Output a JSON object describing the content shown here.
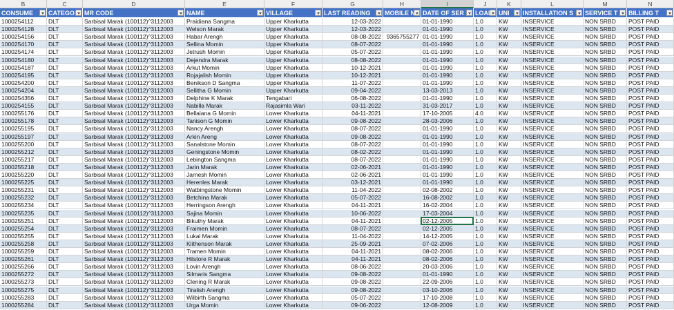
{
  "columns": [
    "B",
    "C",
    "D",
    "E",
    "F",
    "G",
    "H",
    "I",
    "J",
    "K",
    "L",
    "M",
    "N"
  ],
  "header": [
    "CONSUME",
    "CATEGO",
    "MR CODE",
    "NAME",
    "VILLAGE",
    "LAST READING",
    "MOBILE N",
    "DATE OF SER",
    "LOAI",
    "UNI",
    "INSTALLATION S",
    "SERVICE T",
    "BILLING T"
  ],
  "rows": [
    [
      "1000254112",
      "DLT",
      "Sarbisal Marak (100112)^3112003",
      "Praidiana Sangma",
      "Upper Kharkutta",
      "12-03-2022",
      null,
      "01-01-1990",
      "1.0",
      "KW",
      "INSERVICE",
      "NON SRBD",
      "POST PAID"
    ],
    [
      "1000254128",
      "DLT",
      "Sarbisal Marak (100112)^3112003",
      "Welson Marak",
      "Upper Kharkutta",
      "12-03-2022",
      null,
      "01-01-1990",
      "1.0",
      "KW",
      "INSERVICE",
      "NON SRBD",
      "POST PAID"
    ],
    [
      "1000254156",
      "DLT",
      "Sarbisal Marak (100112)^3112003",
      "Habar Arengh",
      "Upper Kharkutta",
      "08-08-2022",
      "9365755277",
      "01-01-1990",
      "1.0",
      "KW",
      "INSERVICE",
      "NON SRBD",
      "POST PAID"
    ],
    [
      "1000254170",
      "DLT",
      "Sarbisal Marak (100112)^3112003",
      "Sellina Momin",
      "Upper Kharkutta",
      "08-07-2022",
      null,
      "01-01-1990",
      "1.0",
      "KW",
      "INSERVICE",
      "NON SRBD",
      "POST PAID"
    ],
    [
      "1000254174",
      "DLT",
      "Sarbisal Marak (100112)^3112003",
      "Jetrush Momin",
      "Upper Kharkutta",
      "05-07-2022",
      null,
      "01-01-1990",
      "1.0",
      "KW",
      "INSERVICE",
      "NON SRBD",
      "POST PAID"
    ],
    [
      "1000254180",
      "DLT",
      "Sarbisal Marak (100112)^3112003",
      "Dejendra Marak",
      "Upper Kharkutta",
      "08-08-2022",
      null,
      "01-01-1990",
      "1.0",
      "KW",
      "INSERVICE",
      "NON SRBD",
      "POST PAID"
    ],
    [
      "1000254187",
      "DLT",
      "Sarbisal Marak (100112)^3112003",
      "Arkut Momin",
      "Upper Kharkutta",
      "10-12-2021",
      null,
      "01-01-1990",
      "1.0",
      "KW",
      "INSERVICE",
      "NON SRBD",
      "POST PAID"
    ],
    [
      "1000254195",
      "DLT",
      "Sarbisal Marak (100112)^3112003",
      "Rojajalish Momin",
      "Upper Kharkutta",
      "10-12-2021",
      null,
      "01-01-1990",
      "1.0",
      "KW",
      "INSERVICE",
      "NON SRBD",
      "POST PAID"
    ],
    [
      "1000254200",
      "DLT",
      "Sarbisal Marak (100112)^3112003",
      "Benikson D Sangma",
      "Upper Kharkutta",
      "11-07-2022",
      null,
      "01-01-1990",
      "1.0",
      "KW",
      "INSERVICE",
      "NON SRBD",
      "POST PAID"
    ],
    [
      "1000254204",
      "DLT",
      "Sarbisal Marak (100112)^3112003",
      "Sellitha G Momin",
      "Upper Kharkutta",
      "09-04-2022",
      null,
      "13-03-2013",
      "1.0",
      "KW",
      "INSERVICE",
      "NON SRBD",
      "POST PAID"
    ],
    [
      "1000254356",
      "DLT",
      "Sarbisal Marak (100112)^3112003",
      "Delphine K Marak",
      "Tengabari",
      "06-08-2022",
      null,
      "01-01-1990",
      "1.0",
      "KW",
      "INSERVICE",
      "NON SRBD",
      "POST PAID"
    ],
    [
      "1000254155",
      "DLT",
      "Sarbisal Marak (100112)^3112003",
      "Nabilla Marak",
      "Rajasimla Wari",
      "03-11-2022",
      null,
      "31-03-2017",
      "1.0",
      "KW",
      "INSERVICE",
      "NON SRBD",
      "POST PAID"
    ],
    [
      "1000255176",
      "DLT",
      "Sarbisal Marak (100112)^3112003",
      "Bellaiana G Momin",
      "Lower Kharkutta",
      "04-11-2021",
      null,
      "17-10-2005",
      "4.0",
      "KW",
      "INSERVICE",
      "NON SRBD",
      "POST PAID"
    ],
    [
      "1000255178",
      "DLT",
      "Sarbisal Marak (100112)^3112003",
      "Tanison G Momin",
      "Lower Kharkutta",
      "09-08-2022",
      null,
      "28-03-2006",
      "1.0",
      "KW",
      "INSERVICE",
      "NON SRBD",
      "POST PAID"
    ],
    [
      "1000255195",
      "DLT",
      "Sarbisal Marak (100112)^3112003",
      "Nancy Arengh",
      "Lower Kharkutta",
      "08-07-2022",
      null,
      "01-01-1990",
      "1.0",
      "KW",
      "INSERVICE",
      "NON SRBD",
      "POST PAID"
    ],
    [
      "1000255197",
      "DLT",
      "Sarbisal Marak (100112)^3112003",
      "Arkin Areng",
      "Lower Kharkutta",
      "09-08-2022",
      null,
      "01-01-1990",
      "1.0",
      "KW",
      "INSERVICE",
      "NON SRBD",
      "POST PAID"
    ],
    [
      "1000255200",
      "DLT",
      "Sarbisal Marak (100112)^3112003",
      "Sanalstone Momin",
      "Lower Kharkutta",
      "08-07-2022",
      null,
      "01-01-1990",
      "1.0",
      "KW",
      "INSERVICE",
      "NON SRBD",
      "POST PAID"
    ],
    [
      "1000255212",
      "DLT",
      "Sarbisal Marak (100112)^3112003",
      "Geningstone Momin",
      "Lower Kharkutta",
      "08-02-2022",
      null,
      "01-01-1990",
      "1.0",
      "KW",
      "INSERVICE",
      "NON SRBD",
      "POST PAID"
    ],
    [
      "1000255217",
      "DLT",
      "Sarbisal Marak (100112)^3112003",
      "Lebington Sangma",
      "Lower Kharkutta",
      "08-07-2022",
      null,
      "01-01-1990",
      "1.0",
      "KW",
      "INSERVICE",
      "NON SRBD",
      "POST PAID"
    ],
    [
      "1000255218",
      "DLT",
      "Sarbisal Marak (100112)^3112003",
      "Jarin Marak",
      "Lower Kharkutta",
      "02-06-2021",
      null,
      "01-01-1990",
      "1.0",
      "KW",
      "INSERVICE",
      "NON SRBD",
      "POST PAID"
    ],
    [
      "1000255220",
      "DLT",
      "Sarbisal Marak (100112)^3112003",
      "Jarnesh Momin",
      "Lower Kharkutta",
      "02-06-2021",
      null,
      "01-01-1990",
      "1.0",
      "KW",
      "INSERVICE",
      "NON SRBD",
      "POST PAID"
    ],
    [
      "1000255225",
      "DLT",
      "Sarbisal Marak (100112)^3112003",
      "Herenles Marak",
      "Lower Kharkutta",
      "03-12-2021",
      null,
      "01-01-1990",
      "1.0",
      "KW",
      "INSERVICE",
      "NON SRBD",
      "POST PAID"
    ],
    [
      "1000255231",
      "DLT",
      "Sarbisal Marak (100112)^3112003",
      "Watbingstone Momin",
      "Lower Kharkutta",
      "11-04-2022",
      null,
      "02-08-2002",
      "1.0",
      "KW",
      "INSERVICE",
      "NON SRBD",
      "POST PAID"
    ],
    [
      "1000255232",
      "DLT",
      "Sarbisal Marak (100112)^3112003",
      "Betchina Marak",
      "Lower Kharkutta",
      "05-07-2022",
      null,
      "16-08-2002",
      "1.0",
      "KW",
      "INSERVICE",
      "NON SRBD",
      "POST PAID"
    ],
    [
      "1000255234",
      "DLT",
      "Sarbisal Marak (100112)^3112003",
      "Herringson Arengh",
      "Lower Kharkutta",
      "04-11-2021",
      null,
      "16-02-2004",
      "1.0",
      "KW",
      "INSERVICE",
      "NON SRBD",
      "POST PAID"
    ],
    [
      "1000255235",
      "DLT",
      "Sarbisal Marak (100112)^3112003",
      "Sajina Momin",
      "Lower Kharkutta",
      "10-06-2022",
      null,
      "17-03-2004",
      "1.0",
      "KW",
      "INSERVICE",
      "NON SRBD",
      "POST PAID"
    ],
    [
      "1000255251",
      "DLT",
      "Sarbisal Marak (100112)^3112003",
      "Bikuthy Marak",
      "Lower Kharkutta",
      "04-11-2021",
      null,
      "02-12-2005",
      "1.0",
      "KW",
      "INSERVICE",
      "NON SRBD",
      "POST PAID"
    ],
    [
      "1000255254",
      "DLT",
      "Sarbisal Marak (100112)^3112003",
      "Fraimen Momin",
      "Lower Kharkutta",
      "08-07-2022",
      null,
      "02-12-2005",
      "1.0",
      "KW",
      "INSERVICE",
      "NON SRBD",
      "POST PAID"
    ],
    [
      "1000255255",
      "DLT",
      "Sarbisal Marak (100112)^3112003",
      "Lukal Marak",
      "Lower Kharkutta",
      "11-04-2022",
      null,
      "14-12-2005",
      "1.0",
      "KW",
      "INSERVICE",
      "NON SRBD",
      "POST PAID"
    ],
    [
      "1000255258",
      "DLT",
      "Sarbisal Marak (100112)^3112003",
      "Klithenson Marak",
      "Lower Kharkutta",
      "25-09-2021",
      null,
      "07-02-2006",
      "1.0",
      "KW",
      "INSERVICE",
      "NON SRBD",
      "POST PAID"
    ],
    [
      "1000255259",
      "DLT",
      "Sarbisal Marak (100112)^3112003",
      "Tramen Momin",
      "Lower Kharkutta",
      "04-11-2021",
      null,
      "08-02-2006",
      "1.0",
      "KW",
      "INSERVICE",
      "NON SRBD",
      "POST PAID"
    ],
    [
      "1000255261",
      "DLT",
      "Sarbisal Marak (100112)^3112003",
      "Hilstore R Marak",
      "Lower Kharkutta",
      "04-11-2021",
      null,
      "08-02-2006",
      "1.0",
      "KW",
      "INSERVICE",
      "NON SRBD",
      "POST PAID"
    ],
    [
      "1000255266",
      "DLT",
      "Sarbisal Marak (100112)^3112003",
      "Lovin Arengh",
      "Lower Kharkutta",
      "08-06-2022",
      null,
      "20-03-2006",
      "1.0",
      "KW",
      "INSERVICE",
      "NON SRBD",
      "POST PAID"
    ],
    [
      "1000255272",
      "DLT",
      "Sarbisal Marak (100112)^3112003",
      "Silmaris Sangma",
      "Lower Kharkutta",
      "09-08-2022",
      null,
      "01-01-1990",
      "1.0",
      "KW",
      "INSERVICE",
      "NON SRBD",
      "POST PAID"
    ],
    [
      "1000255273",
      "DLT",
      "Sarbisal Marak (100112)^3112003",
      "Clening R Marak",
      "Lower Kharkutta",
      "09-08-2022",
      null,
      "22-09-2006",
      "1.0",
      "KW",
      "INSERVICE",
      "NON SRBD",
      "POST PAID"
    ],
    [
      "1000255275",
      "DLT",
      "Sarbisal Marak (100112)^3112003",
      "Tiralish Arengh",
      "Lower Kharkutta",
      "09-08-2022",
      null,
      "03-10-2006",
      "1.0",
      "KW",
      "INSERVICE",
      "NON SRBD",
      "POST PAID"
    ],
    [
      "1000255283",
      "DLT",
      "Sarbisal Marak (100112)^3112003",
      "Wilbirth Sangma",
      "Lower Kharkutta",
      "05-07-2022",
      null,
      "17-10-2008",
      "1.0",
      "KW",
      "INSERVICE",
      "NON SRBD",
      "POST PAID"
    ],
    [
      "1000255284",
      "DLT",
      "Sarbisal Marak (100112)^3112003",
      "Urga Momin",
      "Lower Kharkutta",
      "09-06-2022",
      null,
      "12-08-2009",
      "1.0",
      "KW",
      "INSERVICE",
      "NON SRBD",
      "POST PAID"
    ]
  ]
}
